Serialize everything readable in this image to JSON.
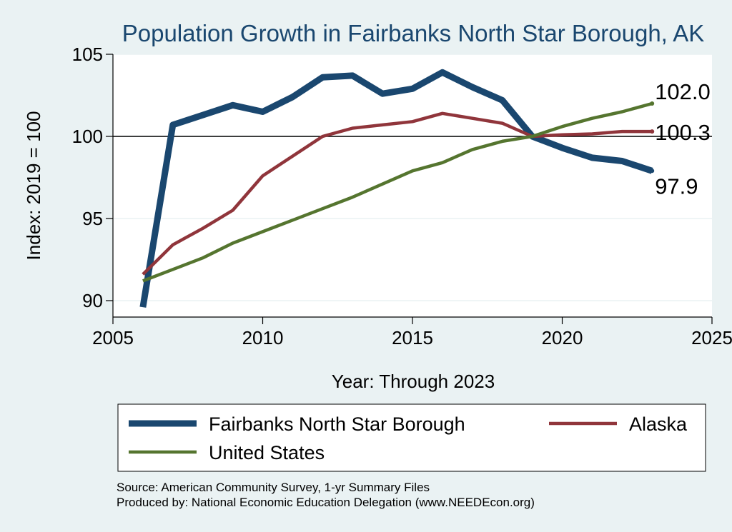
{
  "chart_data": {
    "type": "line",
    "title": "Population Growth in Fairbanks North Star Borough, AK",
    "xlabel": "Year: Through 2023",
    "ylabel": "Index: 2019 = 100",
    "xlim": [
      2005,
      2025
    ],
    "ylim": [
      89,
      105
    ],
    "xticks": [
      2005,
      2010,
      2015,
      2020,
      2025
    ],
    "yticks": [
      90,
      95,
      100,
      105
    ],
    "reference_line": 100,
    "x": [
      2006,
      2007,
      2008,
      2009,
      2010,
      2011,
      2012,
      2013,
      2014,
      2015,
      2016,
      2017,
      2018,
      2019,
      2020,
      2021,
      2022,
      2023
    ],
    "series": [
      {
        "name": "Fairbanks North Star Borough",
        "color": "#1a476f",
        "values": [
          89.6,
          100.7,
          101.3,
          101.9,
          101.5,
          102.4,
          103.6,
          103.7,
          102.6,
          102.9,
          103.9,
          103.0,
          102.2,
          100.0,
          99.3,
          98.7,
          98.5,
          97.9
        ],
        "end_label": "97.9"
      },
      {
        "name": "Alaska",
        "color": "#90353b",
        "values": [
          91.6,
          93.4,
          94.4,
          95.5,
          97.6,
          98.8,
          100.0,
          100.5,
          100.7,
          100.9,
          101.4,
          101.1,
          100.8,
          100.0,
          100.1,
          100.15,
          100.3,
          100.3
        ],
        "end_label": "100.3"
      },
      {
        "name": "United States",
        "color": "#55752f",
        "values": [
          91.2,
          91.9,
          92.6,
          93.5,
          94.2,
          94.9,
          95.6,
          96.3,
          97.1,
          97.9,
          98.4,
          99.2,
          99.7,
          100.0,
          100.6,
          101.1,
          101.5,
          102.0
        ],
        "end_label": "102.0"
      }
    ],
    "legend": {
      "placement": "bottom",
      "order": [
        "Fairbanks North Star Borough",
        "Alaska",
        "United States"
      ]
    },
    "notes": [
      "Source: American Community Survey, 1-yr Summary Files",
      "Produced by: National Economic Education Delegation (www.NEEDEcon.org)"
    ],
    "grid": true
  }
}
